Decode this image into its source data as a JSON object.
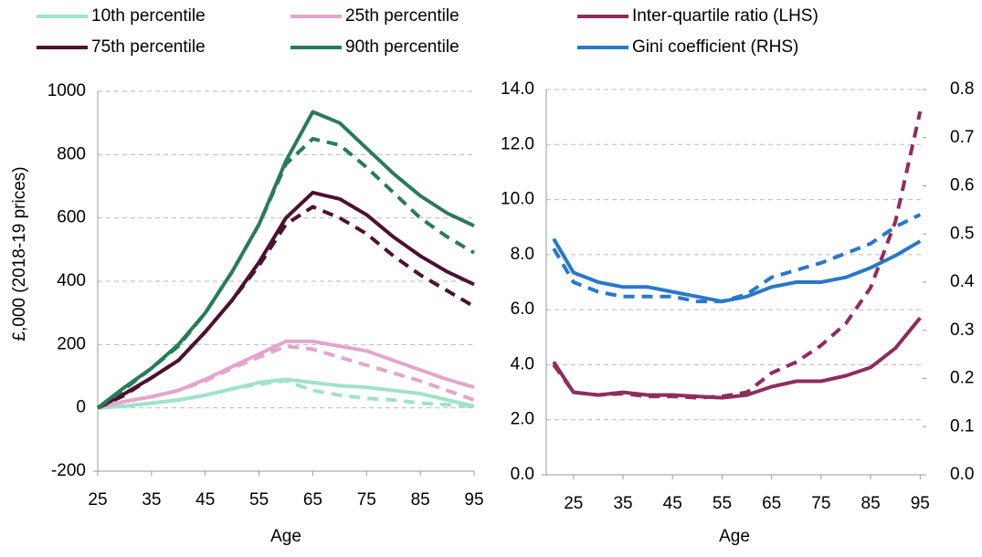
{
  "chart_data": [
    {
      "type": "line",
      "y_label": "£,000 (2018-19 prices)",
      "x_label": "Age",
      "x": [
        25,
        30,
        35,
        40,
        45,
        50,
        55,
        60,
        65,
        70,
        75,
        80,
        85,
        90,
        95
      ],
      "xlim": [
        25,
        95
      ],
      "xticks": [
        25,
        35,
        45,
        55,
        65,
        75,
        85,
        95
      ],
      "ylim": [
        -200,
        1000
      ],
      "yticks": [
        -200,
        0,
        200,
        400,
        600,
        800,
        1000
      ],
      "grid": true,
      "series": [
        {
          "name": "10th percentile",
          "color": "#9fe3c9",
          "values": [
            0,
            5,
            15,
            25,
            40,
            60,
            80,
            90,
            80,
            70,
            65,
            55,
            45,
            25,
            5
          ]
        },
        {
          "name": "25th percentile",
          "color": "#e2a6cb",
          "values": [
            0,
            20,
            35,
            55,
            90,
            130,
            170,
            210,
            210,
            195,
            180,
            150,
            120,
            90,
            65
          ]
        },
        {
          "name": "75th percentile",
          "color": "#4b1232",
          "values": [
            0,
            45,
            95,
            150,
            240,
            340,
            460,
            600,
            680,
            660,
            610,
            540,
            480,
            430,
            390
          ]
        },
        {
          "name": "90th percentile",
          "color": "#2a7b5b",
          "values": [
            0,
            65,
            125,
            200,
            300,
            430,
            580,
            780,
            935,
            900,
            820,
            740,
            670,
            615,
            575
          ]
        },
        {
          "color": "#9fe3c9",
          "dashed": true,
          "values": [
            0,
            5,
            15,
            25,
            40,
            60,
            75,
            85,
            55,
            40,
            30,
            25,
            15,
            10,
            5
          ]
        },
        {
          "color": "#e2a6cb",
          "dashed": true,
          "values": [
            0,
            20,
            35,
            55,
            85,
            125,
            160,
            195,
            185,
            160,
            135,
            110,
            85,
            55,
            25
          ]
        },
        {
          "color": "#4b1232",
          "dashed": true,
          "values": [
            0,
            40,
            95,
            150,
            240,
            340,
            450,
            580,
            635,
            600,
            550,
            480,
            420,
            370,
            320
          ]
        },
        {
          "color": "#2a7b5b",
          "dashed": true,
          "values": [
            0,
            60,
            125,
            195,
            300,
            430,
            580,
            770,
            850,
            830,
            760,
            680,
            600,
            540,
            490
          ]
        }
      ]
    },
    {
      "type": "line",
      "x_label": "Age",
      "x": [
        21,
        25,
        30,
        35,
        40,
        45,
        50,
        55,
        60,
        65,
        70,
        75,
        80,
        85,
        90,
        95
      ],
      "xlim": [
        19.5,
        95.5
      ],
      "xticks": [
        25,
        35,
        45,
        55,
        65,
        75,
        85,
        95
      ],
      "ylim": [
        0,
        14
      ],
      "yticks": [
        {
          "value": 0,
          "label": "0.0"
        },
        {
          "value": 2,
          "label": "2.0"
        },
        {
          "value": 4,
          "label": "4.0"
        },
        {
          "value": 6,
          "label": "6.0"
        },
        {
          "value": 8,
          "label": "8.0"
        },
        {
          "value": 10,
          "label": "10.0"
        },
        {
          "value": 12,
          "label": "12.0"
        },
        {
          "value": 14,
          "label": "14.0"
        }
      ],
      "y2lim": [
        0,
        0.8
      ],
      "y2ticks": [
        {
          "value": 0,
          "label": "0.0"
        },
        0.1,
        0.2,
        0.3,
        0.4,
        0.5,
        0.6,
        0.7,
        0.8
      ],
      "grid": true,
      "series": [
        {
          "name": "Inter-quartile ratio (LHS)",
          "color": "#8e2d5e",
          "values": [
            4.1,
            3.0,
            2.9,
            3.0,
            2.9,
            2.9,
            2.85,
            2.8,
            2.9,
            3.2,
            3.4,
            3.4,
            3.6,
            3.9,
            4.6,
            5.7
          ]
        },
        {
          "name": "Gini coefficient (RHS)",
          "color": "#2a78c8",
          "axis": "y2",
          "values": [
            0.49,
            0.42,
            0.4,
            0.39,
            0.39,
            0.38,
            0.37,
            0.36,
            0.37,
            0.39,
            0.4,
            0.4,
            0.41,
            0.43,
            0.455,
            0.485
          ]
        },
        {
          "color": "#8e2d5e",
          "dashed": true,
          "values": [
            4.0,
            3.0,
            2.9,
            2.95,
            2.85,
            2.85,
            2.8,
            2.85,
            3.0,
            3.7,
            4.1,
            4.7,
            5.5,
            6.8,
            9.2,
            13.2
          ]
        },
        {
          "color": "#2a78c8",
          "dashed": true,
          "axis": "y2",
          "values": [
            0.47,
            0.4,
            0.38,
            0.37,
            0.37,
            0.37,
            0.36,
            0.36,
            0.375,
            0.41,
            0.425,
            0.44,
            0.46,
            0.48,
            0.515,
            0.54
          ]
        }
      ]
    }
  ]
}
